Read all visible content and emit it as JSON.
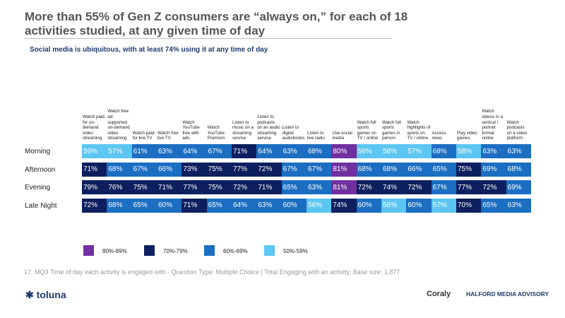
{
  "chart_data": {
    "type": "heatmap",
    "title": "More than 55% of Gen Z consumers are “always on,” for each of 18 activities studied, at any given time of day",
    "subtitle": "Social media is ubiquitous, with at least 74% using it at any time of day",
    "columns": [
      "Watch paid-for on-demand video streaming",
      "Watch free ad-supported on-demand video streaming",
      "Watch paid-for live TV",
      "Watch free live TV",
      "Watch YouTube free with ads",
      "Watch YouTube Premium",
      "Listen to music on a streaming service",
      "Listen to podcasts on an audio streaming service",
      "Listen to digital audiobooks",
      "Listen to live radio",
      "Use social media",
      "Watch full sports games on TV / online",
      "Watch full sports games in person",
      "Watch highlights of sports on TV / online",
      "Access news",
      "Play video games",
      "Watch videos in a vertical / portrait format online",
      "Watch podcasts on a video platform"
    ],
    "rows": [
      "Morning",
      "Afternoon",
      "Evening",
      "Late Night"
    ],
    "values": [
      [
        59,
        57,
        61,
        63,
        64,
        67,
        71,
        64,
        63,
        68,
        80,
        56,
        58,
        57,
        68,
        58,
        63,
        63
      ],
      [
        71,
        68,
        67,
        66,
        73,
        75,
        77,
        72,
        67,
        67,
        81,
        68,
        68,
        66,
        65,
        75,
        69,
        68
      ],
      [
        79,
        76,
        75,
        71,
        77,
        75,
        72,
        71,
        65,
        63,
        81,
        72,
        74,
        72,
        67,
        77,
        72,
        69
      ],
      [
        72,
        68,
        65,
        60,
        71,
        65,
        64,
        63,
        60,
        56,
        74,
        60,
        56,
        60,
        57,
        70,
        65,
        63
      ]
    ],
    "value_labels": [
      [
        "59%",
        "57%",
        "61%",
        "63%",
        "64%",
        "67%",
        "71%",
        "64%",
        "63%",
        "68%",
        "80%",
        "56%",
        "58%",
        "57%",
        "68%",
        "58%",
        "63%",
        "63%"
      ],
      [
        "71%",
        "68%",
        "67%",
        "66%",
        "73%",
        "75%",
        "77%",
        "72%",
        "67%",
        "67%",
        "81%",
        "68%",
        "68%",
        "66%",
        "65%",
        "75%",
        "69%",
        "68%"
      ],
      [
        "79%",
        "76%",
        "75%",
        "71%",
        "77%",
        "75%",
        "72%",
        "71%",
        "65%",
        "63%",
        "81%",
        "72%",
        "74%",
        "72%",
        "67%",
        "77%",
        "72%",
        "69%"
      ],
      [
        "72%",
        "68%",
        "65%",
        "60%",
        "71%",
        "65%",
        "64%",
        "63%",
        "60%",
        "56%",
        "74%",
        "60%",
        "56%",
        "60%",
        "57%",
        "70%",
        "65%",
        "63%"
      ]
    ],
    "legend": [
      {
        "range": [
          80,
          89
        ],
        "label": "80%-89%",
        "color": "#7030a0"
      },
      {
        "range": [
          70,
          79
        ],
        "label": "70%-79%",
        "color": "#0d1f5e"
      },
      {
        "range": [
          60,
          69
        ],
        "label": "60%-69%",
        "color": "#1b6ec2"
      },
      {
        "range": [
          50,
          59
        ],
        "label": "50%-59%",
        "color": "#5cc6f3"
      }
    ],
    "footnote": "17. MQ3 Time of day each activity is engaged with -  Question Type: Multiple Choice | Total Engaging with an activity; Base size: 1,877"
  },
  "footer": {
    "left_logo": "toluna",
    "right_logo_1": "Coraly",
    "right_logo_2": "HALFORD MEDIA ADVISORY"
  }
}
